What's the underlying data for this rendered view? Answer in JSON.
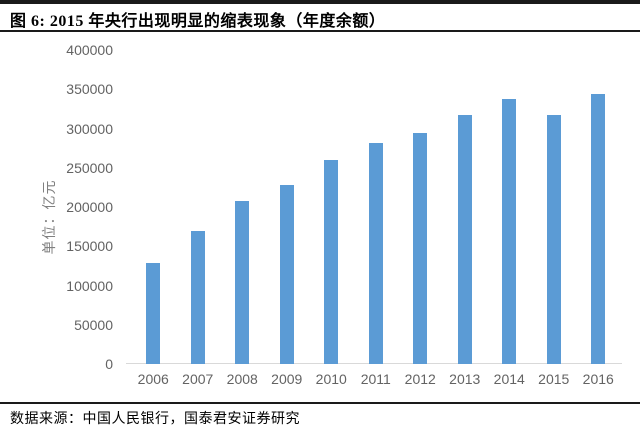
{
  "header": {
    "figure_title": "图 6:  2015 年央行出现明显的缩表现象（年度余额）"
  },
  "footer": {
    "source_text": "数据来源：中国人民银行，国泰君安证券研究"
  },
  "chart_data": {
    "type": "bar",
    "title": "图 6: 2015 年央行出现明显的缩表现象（年度余额）",
    "categories": [
      "2006",
      "2007",
      "2008",
      "2009",
      "2010",
      "2011",
      "2012",
      "2013",
      "2014",
      "2015",
      "2016"
    ],
    "values": [
      128600,
      169100,
      207100,
      227500,
      259300,
      281000,
      294500,
      317300,
      338200,
      317800,
      343700
    ],
    "xlabel": "",
    "ylabel": "单位：亿元",
    "ylim": [
      0,
      400000
    ],
    "ytick_interval": 50000,
    "ytick_labels": [
      "0",
      "50000",
      "100000",
      "150000",
      "200000",
      "250000",
      "300000",
      "350000",
      "400000"
    ],
    "grid": false,
    "legend_position": "none",
    "bar_color": "#5b9bd5",
    "axis_line_color": "#d9d9d9",
    "tick_label_color": "#636363"
  }
}
